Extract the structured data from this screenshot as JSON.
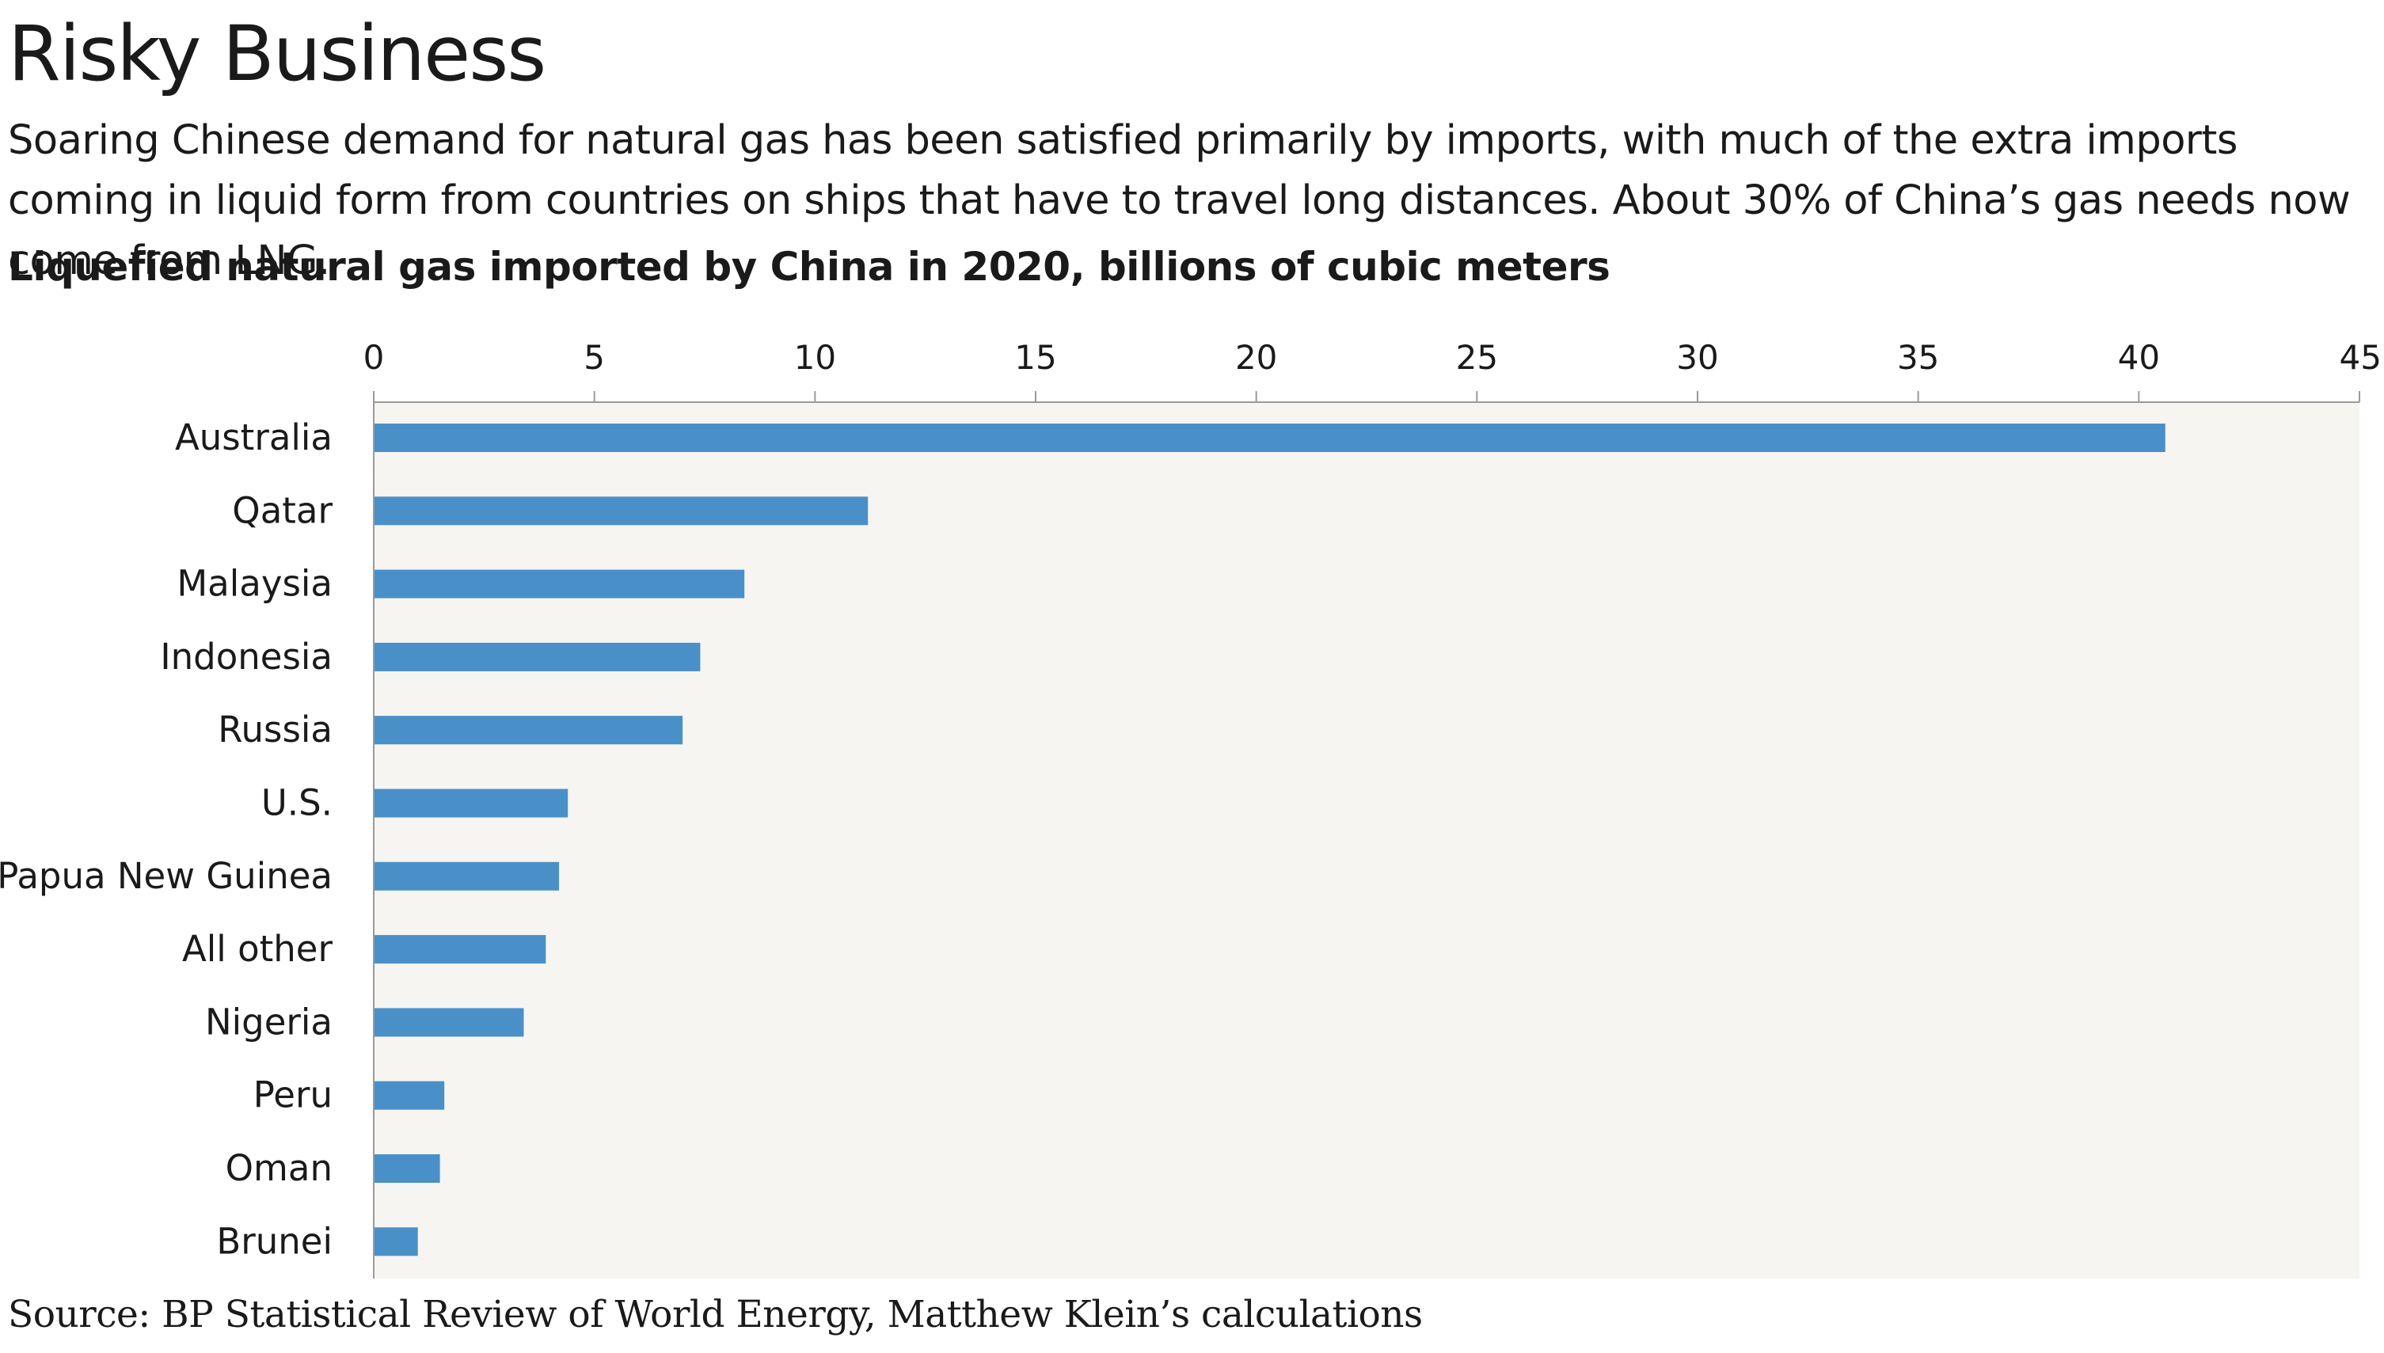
{
  "chart_data": {
    "type": "bar",
    "orientation": "horizontal",
    "title": "Risky Business",
    "subtitle": "Soaring Chinese demand for natural gas has been satisfied primarily by imports, with much of the extra imports coming in liquid form from countries on ships that have to travel long distances. About 30% of China’s gas needs now come from LNG.",
    "heading": "Liquefied natural gas imported by China in 2020, billions of cubic meters",
    "source": "Source: BP Statistical Review of World Energy, Matthew Klein’s calculations",
    "categories": [
      "Australia",
      "Qatar",
      "Malaysia",
      "Indonesia",
      "Russia",
      "U.S.",
      "Papua New Guinea",
      "All other",
      "Nigeria",
      "Peru",
      "Oman",
      "Brunei"
    ],
    "values": [
      40.6,
      11.2,
      8.4,
      7.4,
      7.0,
      4.4,
      4.2,
      3.9,
      3.4,
      1.6,
      1.5,
      1.0
    ],
    "xlim": [
      0,
      45
    ],
    "xticks": [
      0,
      5,
      10,
      15,
      20,
      25,
      30,
      35,
      40,
      45
    ],
    "axis_position": "top",
    "grid": false,
    "bar_color": "#4a90c8",
    "plot_background": "#f6f5f2"
  }
}
